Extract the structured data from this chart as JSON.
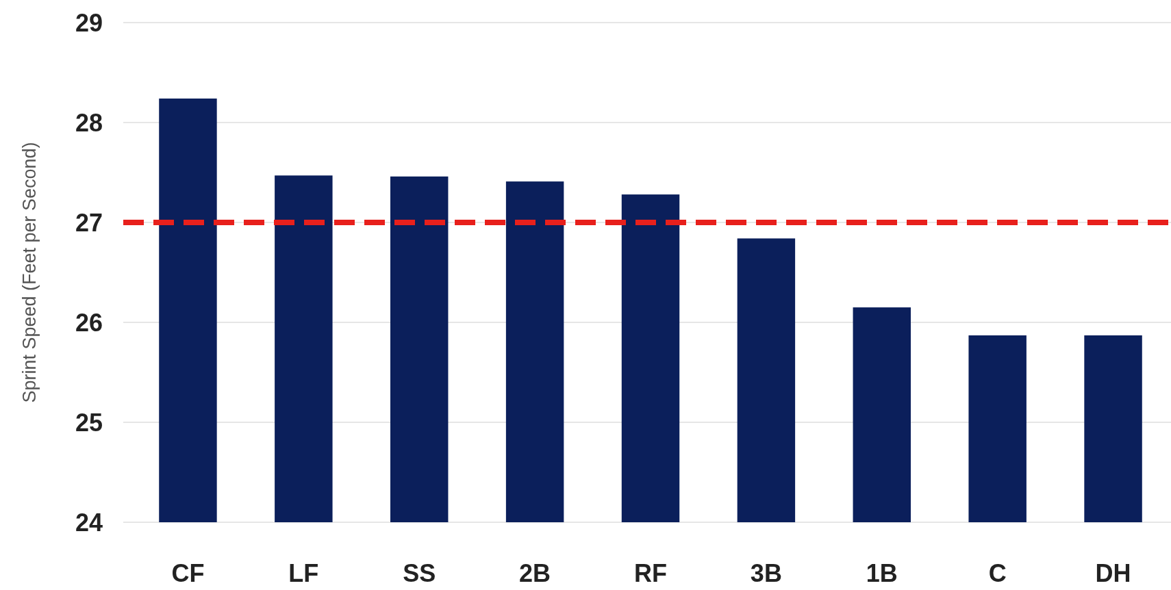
{
  "chart_data": {
    "type": "bar",
    "ylabel": "Sprint Speed (Feet per Second)",
    "categories": [
      "CF",
      "LF",
      "SS",
      "2B",
      "RF",
      "3B",
      "1B",
      "C",
      "DH"
    ],
    "values": [
      28.24,
      27.47,
      27.46,
      27.41,
      27.28,
      26.84,
      26.15,
      25.87,
      25.87
    ],
    "color": "#0b1f5b",
    "ylim": [
      24,
      29
    ],
    "yticks": [
      24,
      25,
      26,
      27,
      28,
      29
    ],
    "grid": "y",
    "ref_lines": [
      {
        "axis": "y",
        "value": 27,
        "color": "#e8201c",
        "line_style": "dashed"
      }
    ]
  }
}
